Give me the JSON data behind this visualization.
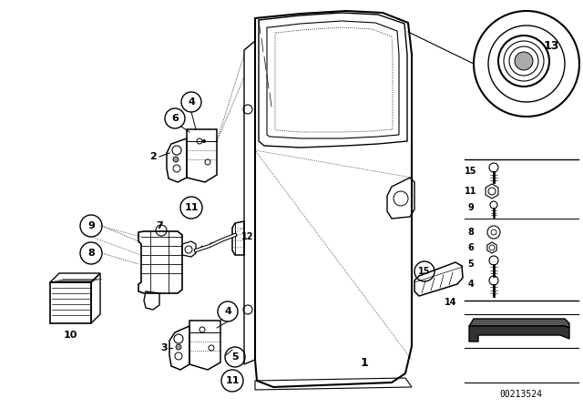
{
  "bg_color": "#ffffff",
  "part_number": "00213524",
  "fig_width": 6.4,
  "fig_height": 4.48,
  "dpi": 100,
  "black": "#000000",
  "gray": "#888888",
  "light_gray": "#cccccc"
}
